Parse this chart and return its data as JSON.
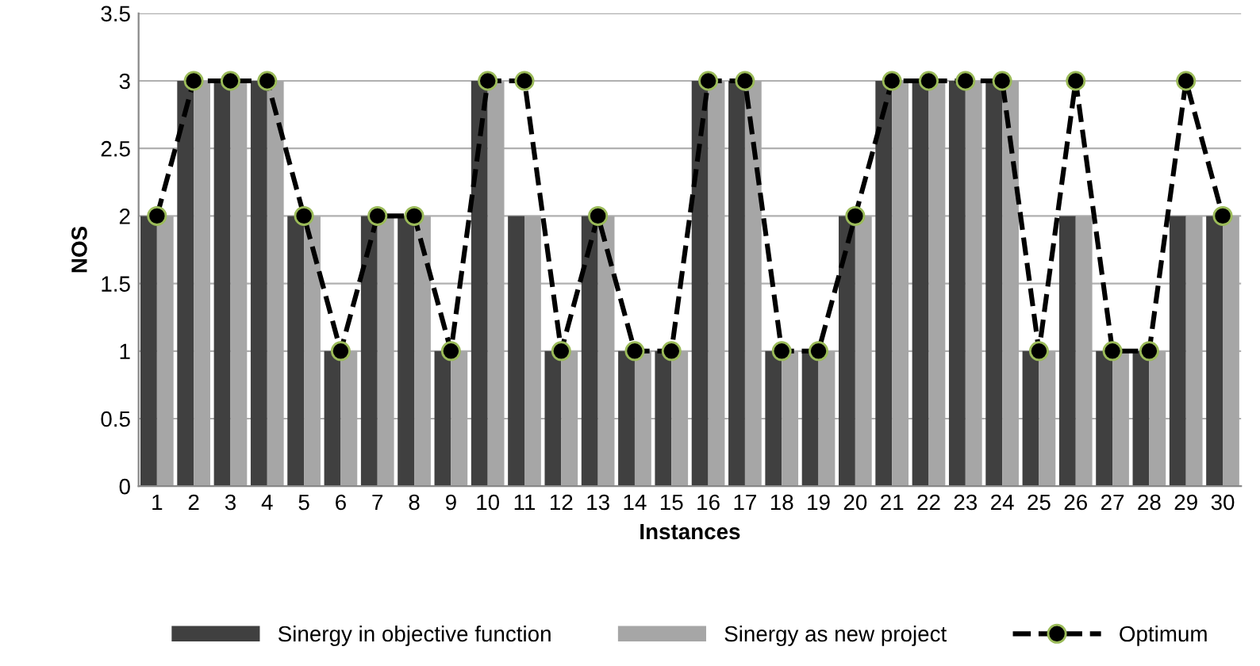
{
  "chart_data": {
    "type": "bar",
    "xlabel": "Instances",
    "ylabel": "NOS",
    "categories": [
      "1",
      "2",
      "3",
      "4",
      "5",
      "6",
      "7",
      "8",
      "9",
      "10",
      "11",
      "12",
      "13",
      "14",
      "15",
      "16",
      "17",
      "18",
      "19",
      "20",
      "21",
      "22",
      "23",
      "24",
      "25",
      "26",
      "27",
      "28",
      "29",
      "30"
    ],
    "series": [
      {
        "name": "Sinergy in objective function",
        "color": "#404040",
        "values": [
          2,
          3,
          3,
          3,
          2,
          1,
          2,
          2,
          1,
          3,
          2,
          1,
          2,
          1,
          1,
          3,
          3,
          1,
          1,
          2,
          3,
          3,
          3,
          3,
          1,
          2,
          1,
          1,
          2,
          2
        ]
      },
      {
        "name": "Sinergy as new project",
        "color": "#a6a6a6",
        "values": [
          2,
          3,
          3,
          3,
          2,
          1,
          2,
          2,
          1,
          3,
          2,
          1,
          2,
          1,
          1,
          3,
          3,
          1,
          1,
          2,
          3,
          3,
          3,
          3,
          1,
          2,
          1,
          1,
          2,
          2
        ]
      },
      {
        "name": "Optimum",
        "type": "line",
        "color": "#000000",
        "marker": "circle",
        "line_style": "dashed",
        "values": [
          2,
          3,
          3,
          3,
          2,
          1,
          2,
          2,
          1,
          3,
          3,
          1,
          2,
          1,
          1,
          3,
          3,
          1,
          1,
          2,
          3,
          3,
          3,
          3,
          1,
          3,
          1,
          1,
          3,
          2
        ]
      }
    ],
    "ylim": [
      0,
      3.5
    ],
    "yticks": [
      0,
      0.5,
      1,
      1.5,
      2,
      2.5,
      3,
      3.5
    ],
    "grid": "y",
    "legend": "bottom"
  }
}
